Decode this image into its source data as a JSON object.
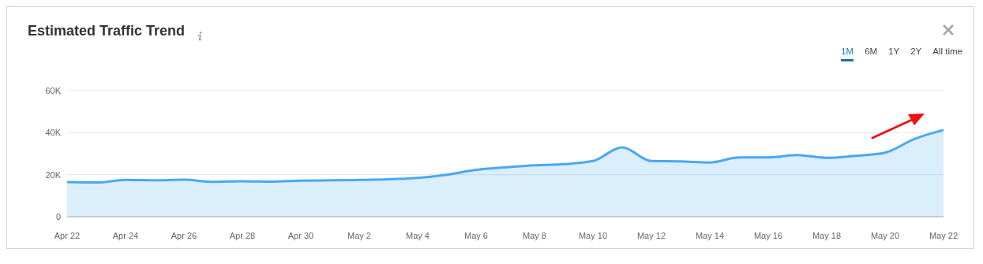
{
  "chart_data": {
    "type": "area",
    "title": "Estimated Traffic Trend",
    "annotations": [
      "1M",
      "6M",
      "1Y",
      "2Y",
      "All time"
    ],
    "categories": [
      "Apr 22",
      null,
      "Apr 24",
      null,
      "Apr 26",
      null,
      "Apr 28",
      null,
      "Apr 30",
      null,
      "May 2",
      null,
      "May 4",
      null,
      "May 6",
      null,
      "May 8",
      null,
      "May 10",
      null,
      "May 12",
      null,
      "May 14",
      null,
      "May 16",
      null,
      "May 18",
      null,
      "May 20",
      null,
      "May 22"
    ],
    "series": [
      {
        "color": "#4aa8f0",
        "values": [
          16500,
          16300,
          17500,
          17300,
          17600,
          16600,
          16900,
          16700,
          17200,
          17300,
          17500,
          17800,
          18500,
          20000,
          22300,
          23500,
          24500,
          25000,
          26500,
          33000,
          26500,
          26300,
          25800,
          28200,
          28200,
          29300,
          28000,
          29000,
          30500,
          37000,
          41300
        ]
      }
    ],
    "ylim": [
      0,
      60000
    ],
    "yticks": [
      0,
      {
        "value": 20000,
        "label": "20K"
      },
      {
        "value": 40000,
        "label": "40K"
      },
      {
        "value": 60000,
        "label": "60K"
      }
    ],
    "grid": "y",
    "legend": false
  }
}
